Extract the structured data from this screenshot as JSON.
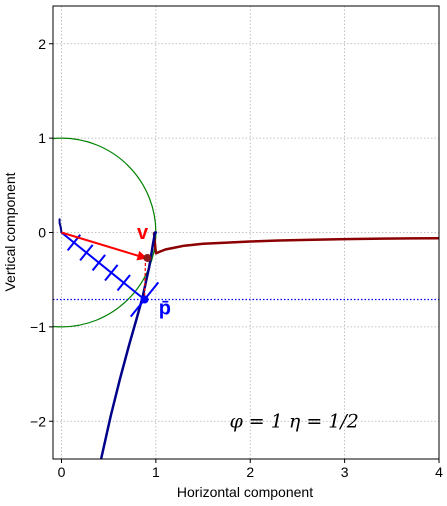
{
  "chart_data": {
    "type": "line",
    "xlabel": "Horizontal component",
    "ylabel": "Vertical component",
    "xlim": [
      -0.09,
      4.0
    ],
    "ylim": [
      -2.4,
      2.4
    ],
    "xticks": [
      0,
      1,
      2,
      3,
      4
    ],
    "yticks": [
      -2,
      -1,
      0,
      1,
      2
    ],
    "xtick_labels": [
      "0",
      "1",
      "2",
      "3",
      "4"
    ],
    "ytick_labels": [
      "−2",
      "−1",
      "0",
      "1",
      "2"
    ],
    "grid": true,
    "grid_style": "dotted",
    "annotation": "φ = 1    η = 1/2",
    "annotation_position": [
      1.78,
      -2.0
    ],
    "colors": {
      "dark_red_curve": "#8b0000",
      "blue_curve": "#00008b",
      "green_circle": "#008000",
      "vector_v": "#ff0000",
      "vector_p": "#0000ff",
      "dashed_line": "#0000ff"
    },
    "unit_circle": {
      "center": [
        0,
        0
      ],
      "radius": 1
    },
    "horizontal_dotted_line": {
      "y": -0.71
    },
    "series": [
      {
        "x": [
          0.98,
          1.0,
          1.05,
          1.1,
          1.2,
          1.3,
          1.5,
          1.7,
          2.0,
          2.3,
          2.6,
          3.0,
          3.4,
          3.7,
          4.0
        ],
        "y": [
          -0.01,
          -0.22,
          -0.2,
          -0.18,
          -0.16,
          -0.14,
          -0.12,
          -0.11,
          -0.095,
          -0.085,
          -0.078,
          -0.07,
          -0.065,
          -0.062,
          -0.06
        ]
      },
      {
        "x": [
          0.42,
          0.52,
          0.62,
          0.72,
          0.8,
          0.86,
          0.9,
          0.93,
          0.95,
          0.97,
          0.98,
          0.985,
          0.99,
          1.0
        ],
        "y": [
          -2.4,
          -1.95,
          -1.55,
          -1.18,
          -0.9,
          -0.68,
          -0.5,
          -0.36,
          -0.24,
          -0.12,
          -0.06,
          -0.03,
          0.0,
          0.0
        ]
      },
      {
        "x": [
          0.0,
          -0.01,
          -0.02,
          -0.02
        ],
        "y": [
          0.0,
          0.06,
          0.1,
          0.14
        ]
      }
    ],
    "vectors": [
      {
        "label": "v",
        "from": [
          0,
          0
        ],
        "to": [
          0.89,
          -0.27
        ]
      },
      {
        "label": "p̄",
        "from": [
          0,
          0
        ],
        "to": [
          0.88,
          -0.71
        ]
      }
    ],
    "points": [
      {
        "x": 0.91,
        "y": -0.27
      },
      {
        "x": 0.88,
        "y": -0.71
      }
    ],
    "ticks_on_p": [
      0.15,
      0.3,
      0.45,
      0.6,
      0.75,
      1.0
    ],
    "labels": [
      {
        "text": "v",
        "x": 0.8,
        "y": -0.07
      },
      {
        "text": "p̄",
        "x": 1.03,
        "y": -0.87
      }
    ]
  }
}
